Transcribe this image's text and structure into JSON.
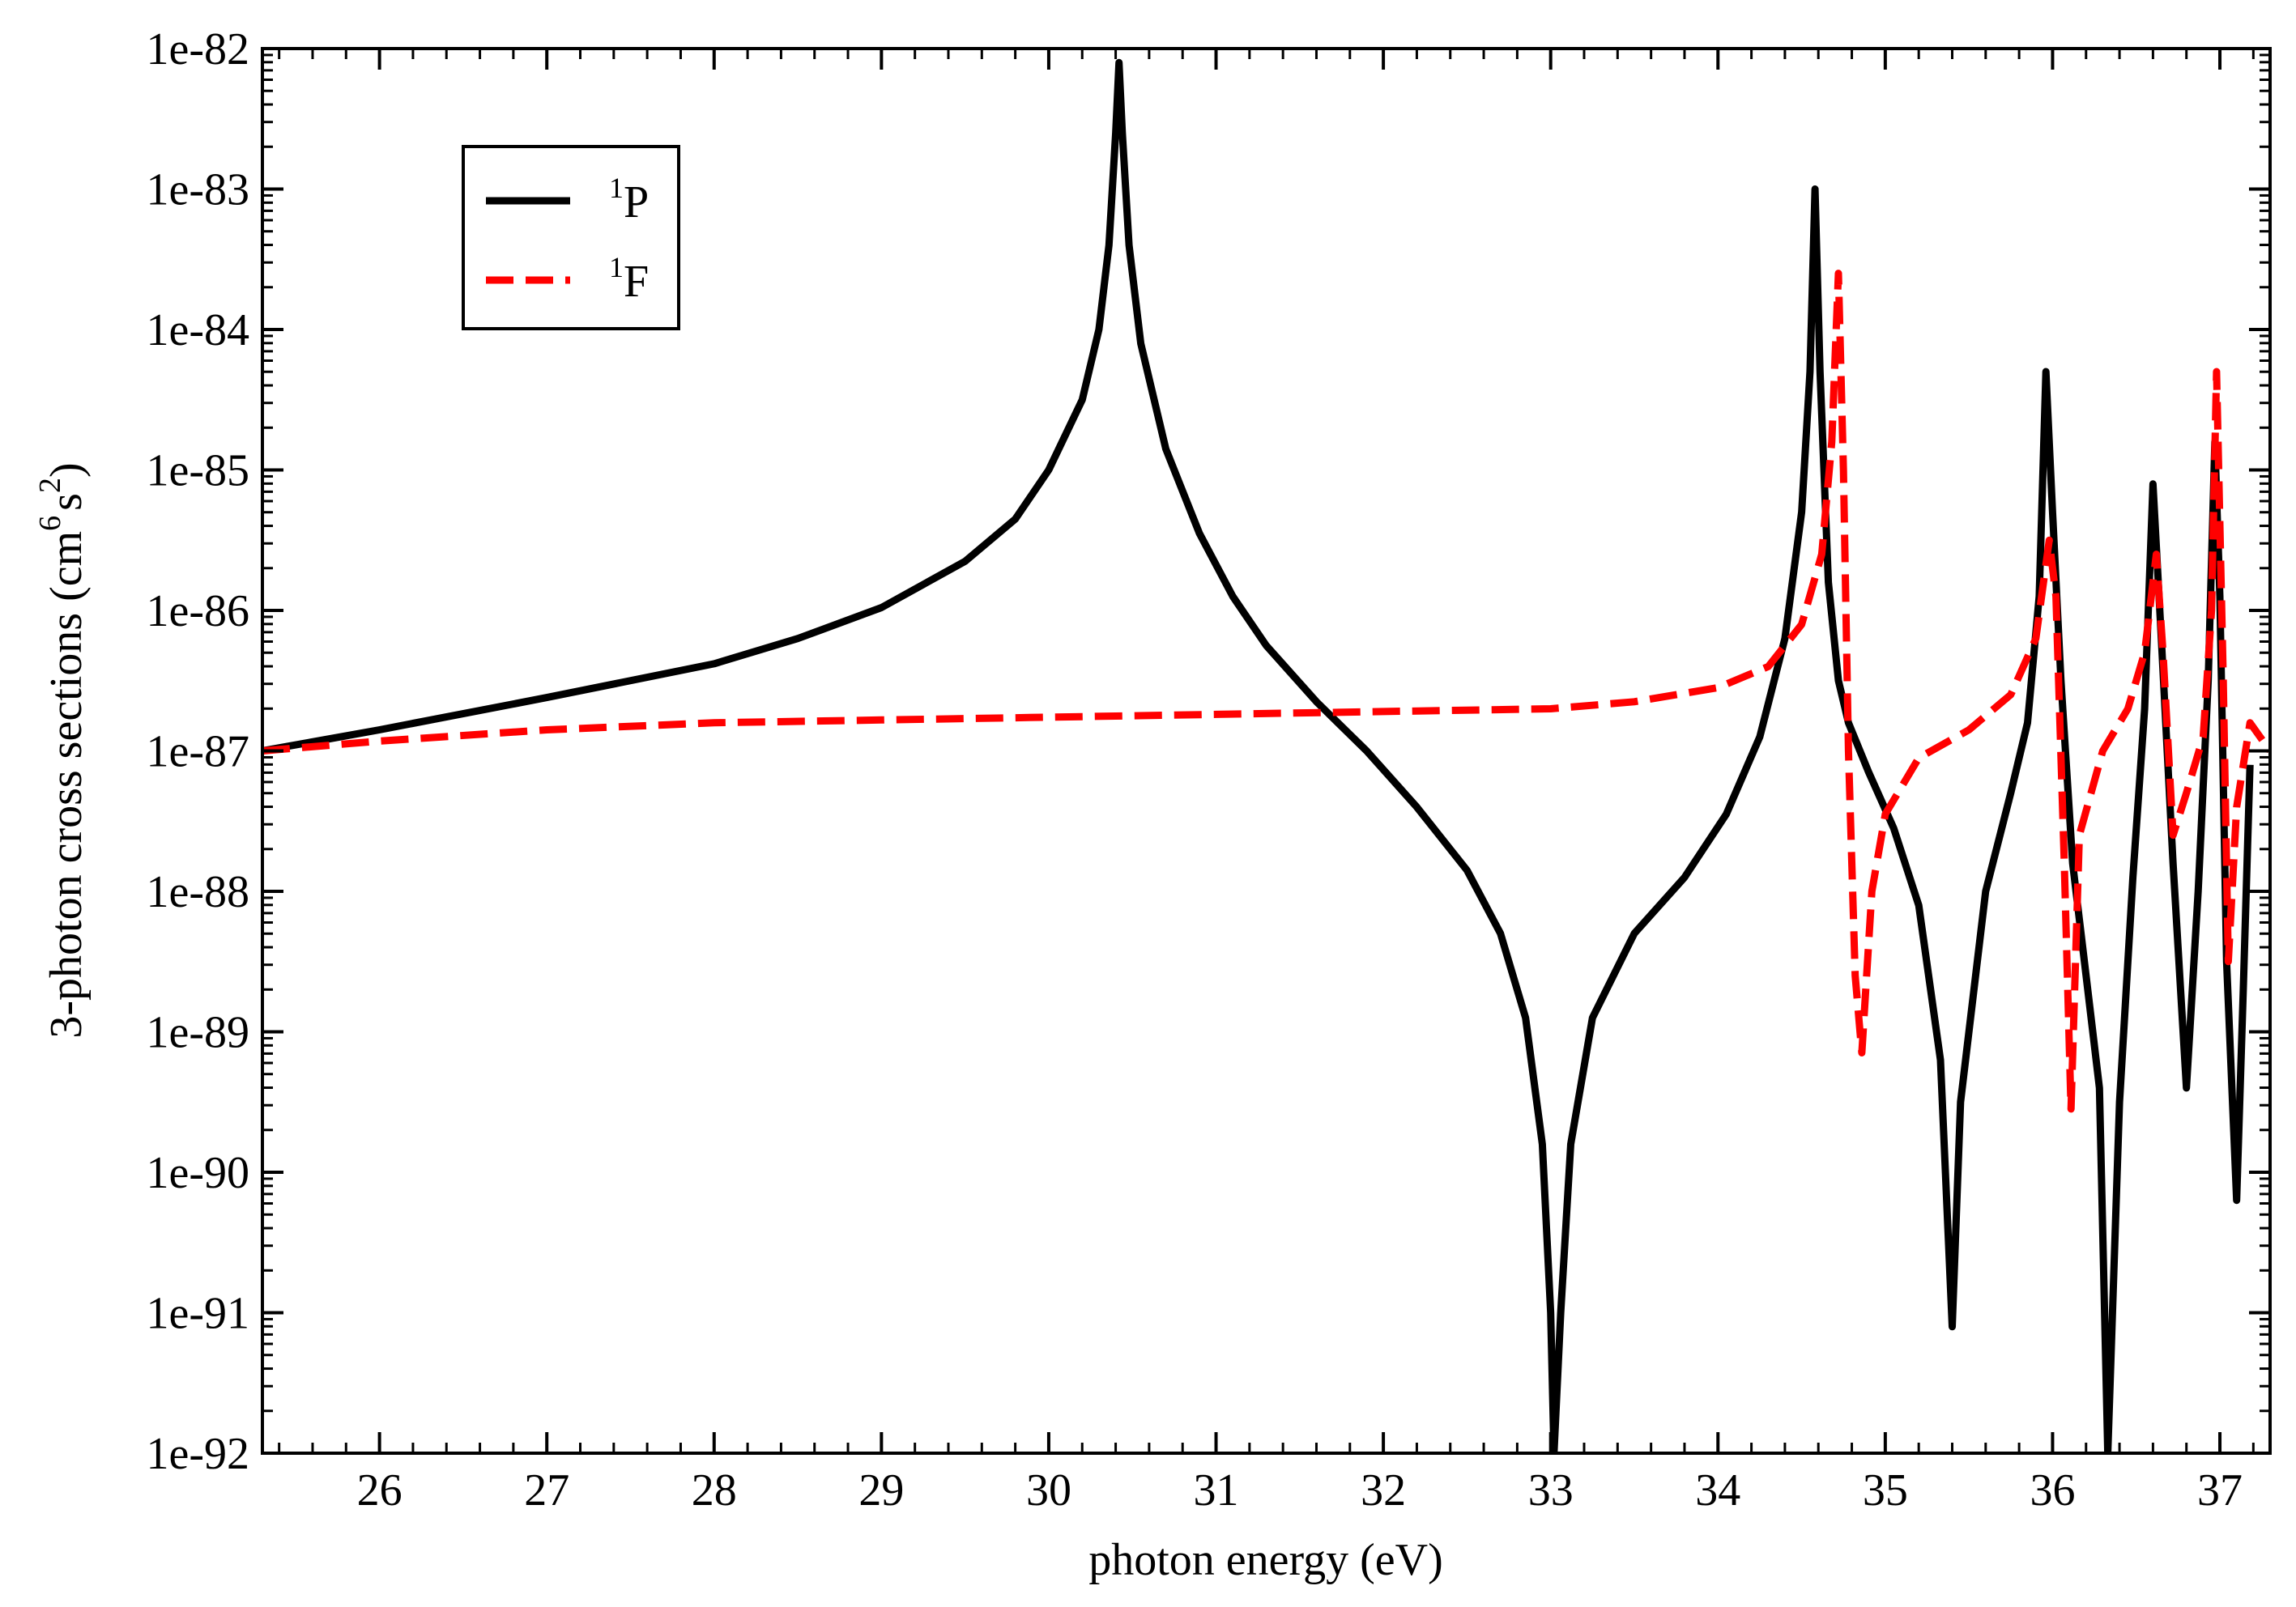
{
  "chart_data": {
    "type": "line",
    "xlabel": "photon energy (eV)",
    "ylabel": {
      "prefix": "3-photon cross sections (cm",
      "exp1": "6",
      "mid": "s",
      "exp2": "2",
      "suffix": ")"
    },
    "xlim": [
      25.3,
      37.3
    ],
    "ylim_log10": [
      -92,
      -82
    ],
    "yscale": "log",
    "grid": false,
    "legend_position": "top-left",
    "x_ticks": [
      "26",
      "27",
      "28",
      "29",
      "30",
      "31",
      "32",
      "33",
      "34",
      "35",
      "36",
      "37"
    ],
    "y_ticks": [
      "1e-82",
      "1e-83",
      "1e-84",
      "1e-85",
      "1e-86",
      "1e-87",
      "1e-88",
      "1e-89",
      "1e-90",
      "1e-91",
      "1e-92"
    ],
    "series": [
      {
        "name": {
          "sup": "1",
          "base": "P"
        },
        "color": "#000000",
        "style": "solid",
        "points": [
          [
            25.3,
            -87.0
          ],
          [
            26.0,
            -86.85
          ],
          [
            27.0,
            -86.62
          ],
          [
            28.0,
            -86.38
          ],
          [
            28.5,
            -86.2
          ],
          [
            29.0,
            -85.98
          ],
          [
            29.5,
            -85.65
          ],
          [
            29.8,
            -85.35
          ],
          [
            30.0,
            -85.0
          ],
          [
            30.2,
            -84.5
          ],
          [
            30.3,
            -84.0
          ],
          [
            30.36,
            -83.4
          ],
          [
            30.4,
            -82.6
          ],
          [
            30.42,
            -82.1
          ],
          [
            30.44,
            -82.6
          ],
          [
            30.48,
            -83.4
          ],
          [
            30.55,
            -84.1
          ],
          [
            30.7,
            -84.85
          ],
          [
            30.9,
            -85.45
          ],
          [
            31.1,
            -85.9
          ],
          [
            31.3,
            -86.25
          ],
          [
            31.6,
            -86.65
          ],
          [
            31.9,
            -87.0
          ],
          [
            32.2,
            -87.4
          ],
          [
            32.5,
            -87.85
          ],
          [
            32.7,
            -88.3
          ],
          [
            32.85,
            -88.9
          ],
          [
            32.95,
            -89.8
          ],
          [
            33.0,
            -91.0
          ],
          [
            33.02,
            -92.0
          ],
          [
            33.06,
            -91.0
          ],
          [
            33.12,
            -89.8
          ],
          [
            33.25,
            -88.9
          ],
          [
            33.5,
            -88.3
          ],
          [
            33.8,
            -87.9
          ],
          [
            34.05,
            -87.45
          ],
          [
            34.25,
            -86.9
          ],
          [
            34.4,
            -86.2
          ],
          [
            34.5,
            -85.3
          ],
          [
            34.55,
            -84.3
          ],
          [
            34.58,
            -83.0
          ],
          [
            34.61,
            -84.3
          ],
          [
            34.66,
            -85.8
          ],
          [
            34.72,
            -86.5
          ],
          [
            34.78,
            -86.8
          ],
          [
            34.9,
            -87.15
          ],
          [
            35.05,
            -87.55
          ],
          [
            35.2,
            -88.1
          ],
          [
            35.33,
            -89.2
          ],
          [
            35.4,
            -91.1
          ],
          [
            35.45,
            -89.5
          ],
          [
            35.6,
            -88.0
          ],
          [
            35.75,
            -87.3
          ],
          [
            35.85,
            -86.8
          ],
          [
            35.92,
            -85.9
          ],
          [
            35.96,
            -84.3
          ],
          [
            36.0,
            -85.3
          ],
          [
            36.05,
            -86.5
          ],
          [
            36.12,
            -87.8
          ],
          [
            36.2,
            -88.6
          ],
          [
            36.28,
            -89.4
          ],
          [
            36.33,
            -92.0
          ],
          [
            36.4,
            -89.5
          ],
          [
            36.48,
            -87.9
          ],
          [
            36.55,
            -86.7
          ],
          [
            36.6,
            -85.1
          ],
          [
            36.65,
            -86.2
          ],
          [
            36.72,
            -87.8
          ],
          [
            36.8,
            -89.4
          ],
          [
            36.87,
            -88.0
          ],
          [
            36.93,
            -86.5
          ],
          [
            36.97,
            -84.8
          ],
          [
            37.0,
            -85.9
          ],
          [
            37.04,
            -88.5
          ],
          [
            37.1,
            -90.2
          ],
          [
            37.14,
            -88.7
          ],
          [
            37.18,
            -87.1
          ]
        ]
      },
      {
        "name": {
          "sup": "1",
          "base": "F"
        },
        "color": "#ff0000",
        "style": "dashed",
        "points": [
          [
            25.3,
            -87.0
          ],
          [
            26.0,
            -86.93
          ],
          [
            27.0,
            -86.85
          ],
          [
            28.0,
            -86.8
          ],
          [
            29.0,
            -86.78
          ],
          [
            30.0,
            -86.76
          ],
          [
            31.0,
            -86.74
          ],
          [
            32.0,
            -86.72
          ],
          [
            33.0,
            -86.7
          ],
          [
            33.5,
            -86.65
          ],
          [
            34.0,
            -86.55
          ],
          [
            34.3,
            -86.4
          ],
          [
            34.5,
            -86.1
          ],
          [
            34.62,
            -85.6
          ],
          [
            34.68,
            -84.8
          ],
          [
            34.72,
            -83.6
          ],
          [
            34.75,
            -85.0
          ],
          [
            34.78,
            -87.0
          ],
          [
            34.82,
            -88.6
          ],
          [
            34.86,
            -89.15
          ],
          [
            34.92,
            -88.0
          ],
          [
            35.0,
            -87.45
          ],
          [
            35.2,
            -87.05
          ],
          [
            35.5,
            -86.85
          ],
          [
            35.75,
            -86.6
          ],
          [
            35.9,
            -86.2
          ],
          [
            35.98,
            -85.5
          ],
          [
            36.02,
            -85.9
          ],
          [
            36.07,
            -87.8
          ],
          [
            36.11,
            -89.55
          ],
          [
            36.16,
            -87.6
          ],
          [
            36.3,
            -87.0
          ],
          [
            36.45,
            -86.7
          ],
          [
            36.55,
            -86.3
          ],
          [
            36.62,
            -85.6
          ],
          [
            36.66,
            -86.3
          ],
          [
            36.72,
            -87.6
          ],
          [
            36.8,
            -87.3
          ],
          [
            36.9,
            -86.9
          ],
          [
            36.95,
            -86.0
          ],
          [
            36.98,
            -84.3
          ],
          [
            37.02,
            -86.5
          ],
          [
            37.05,
            -88.5
          ],
          [
            37.1,
            -87.4
          ],
          [
            37.18,
            -86.8
          ],
          [
            37.3,
            -87.0
          ]
        ]
      }
    ]
  }
}
